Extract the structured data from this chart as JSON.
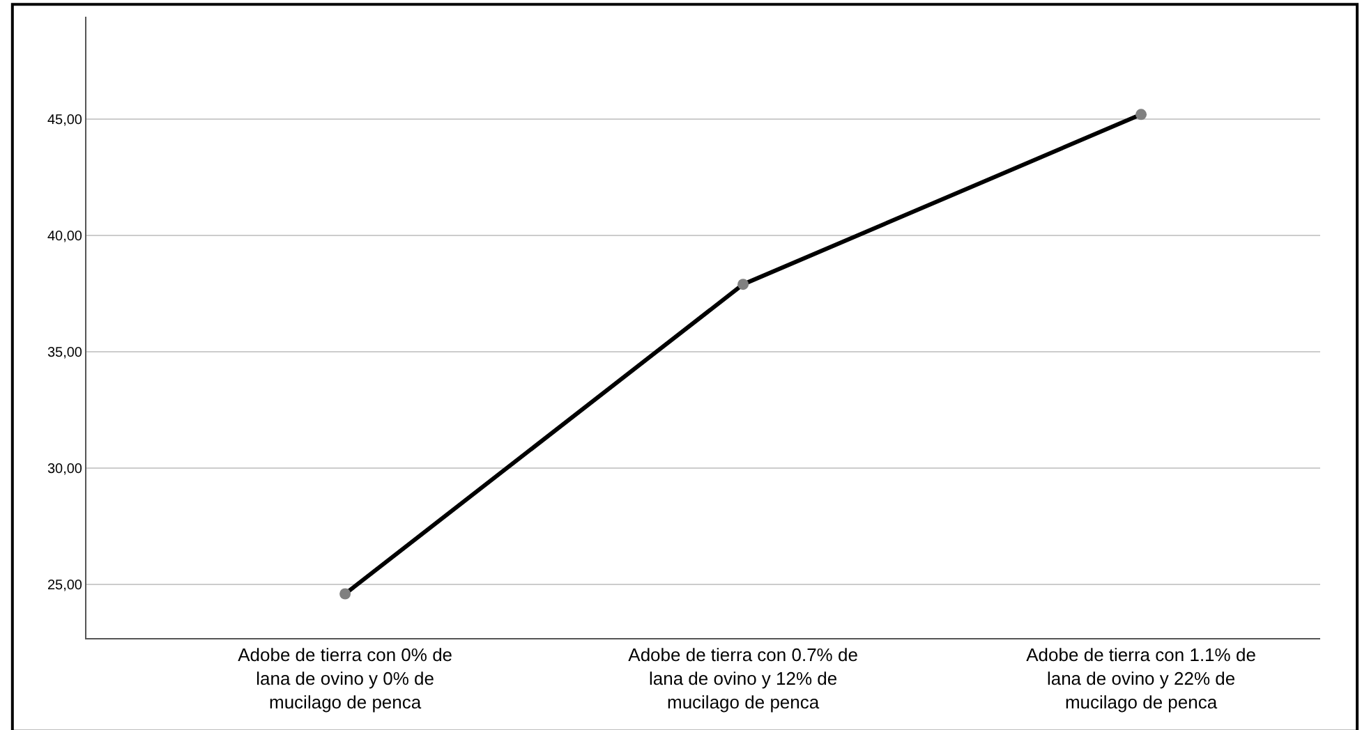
{
  "chart_data": {
    "type": "line",
    "categories": [
      "Adobe de tierra con 0% de lana de ovino y 0% de mucilago de penca",
      "Adobe de tierra con 0.7% de lana de ovino y 12% de mucilago de penca",
      "Adobe de tierra con 1.1% de lana de ovino y 22% de mucilago de penca"
    ],
    "series": [
      {
        "color": "#000000",
        "values": [
          24.6,
          37.9,
          45.2
        ]
      }
    ],
    "ylim": [
      22.7,
      49.4
    ],
    "yticks": [
      {
        "value": 25,
        "label": "25,00"
      },
      {
        "value": 30,
        "label": "30,00"
      },
      {
        "value": 35,
        "label": "35,00"
      },
      {
        "value": 40,
        "label": "40,00"
      },
      {
        "value": 45,
        "label": "45,00"
      }
    ],
    "grid": "y",
    "marker": "circle",
    "line_style": "solid",
    "legend": false
  }
}
